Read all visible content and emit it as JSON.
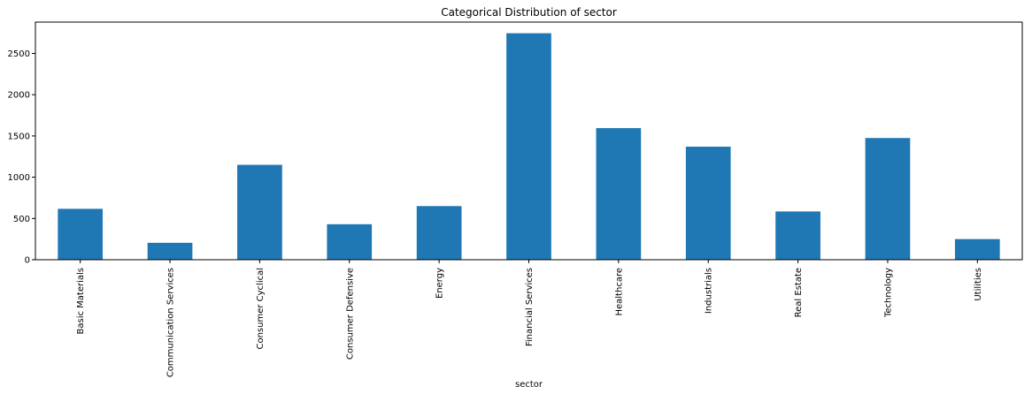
{
  "chart_data": {
    "type": "bar",
    "title": "Categorical Distribution of sector",
    "xlabel": "sector",
    "ylabel": "",
    "categories": [
      "Basic Materials",
      "Communication Services",
      "Consumer Cyclical",
      "Consumer Defensive",
      "Energy",
      "Financial Services",
      "Healthcare",
      "Industrials",
      "Real Estate",
      "Technology",
      "Utilities"
    ],
    "values": [
      617,
      205,
      1150,
      430,
      650,
      2745,
      1595,
      1370,
      585,
      1475,
      250
    ],
    "ylim": [
      0,
      2880
    ],
    "yticks": [
      0,
      500,
      1000,
      1500,
      2000,
      2500
    ],
    "bar_color": "#1f77b4",
    "grid": false,
    "legend": false
  }
}
